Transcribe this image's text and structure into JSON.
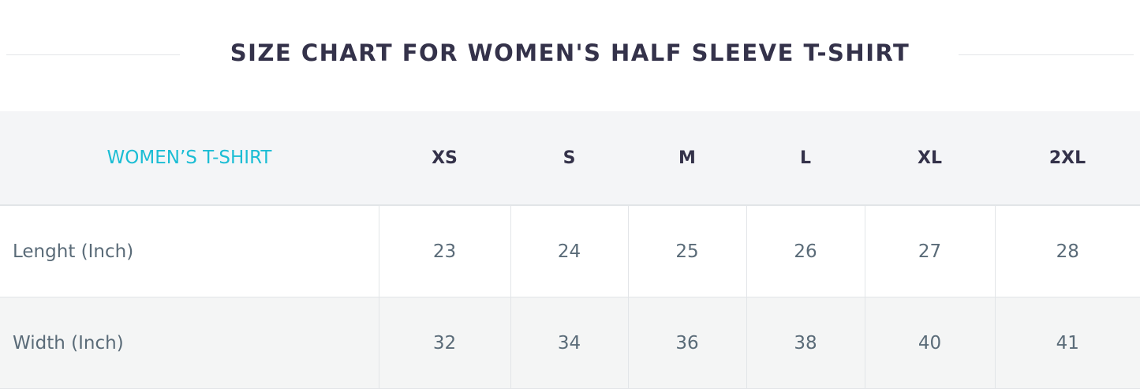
{
  "title": "SIZE CHART FOR WOMEN'S HALF SLEEVE T-SHIRT",
  "table": {
    "headers": [
      "WOMEN’S T-SHIRT",
      "XS",
      "S",
      "M",
      "L",
      "XL",
      "2XL"
    ],
    "rows": [
      [
        "Lenght (Inch)",
        "23",
        "24",
        "25",
        "26",
        "27",
        "28"
      ],
      [
        "Width (Inch)",
        "32",
        "34",
        "36",
        "38",
        "40",
        "41"
      ]
    ]
  },
  "colors": {
    "accent": "#1bbdd4",
    "heading": "#34324a",
    "text": "#5a6b78"
  }
}
